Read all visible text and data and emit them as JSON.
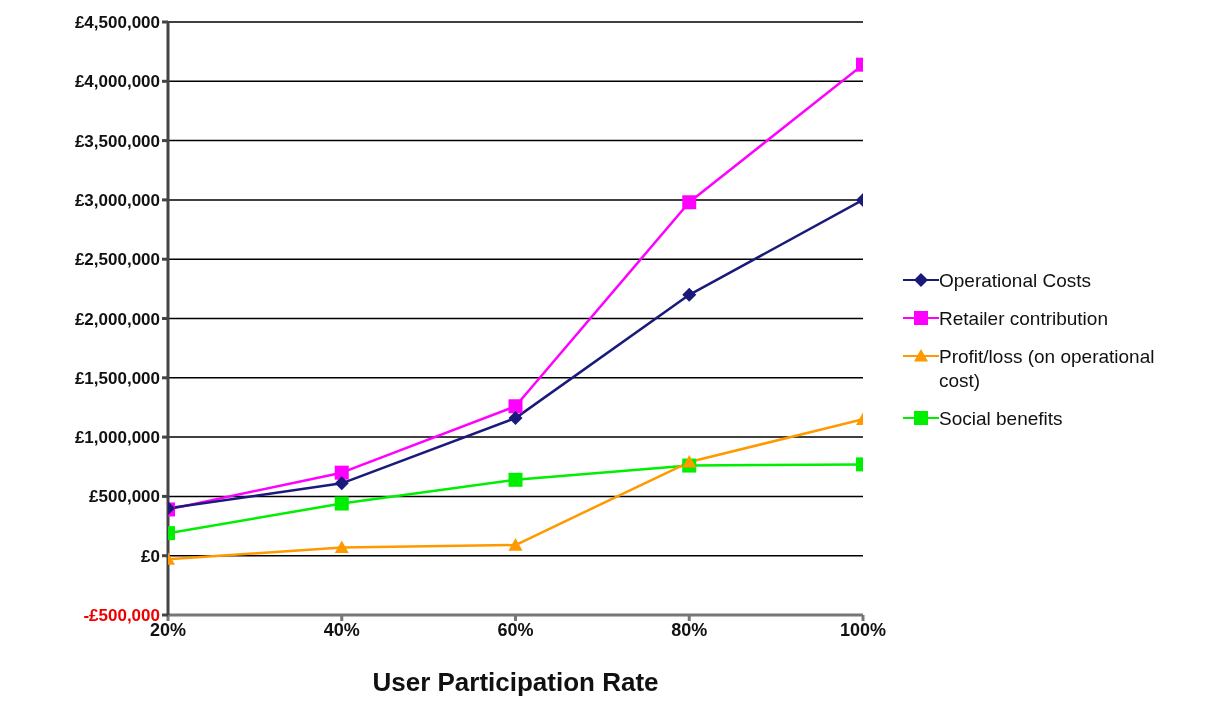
{
  "chart_data": {
    "type": "line",
    "xlabel": "User Participation Rate",
    "categories": [
      "20%",
      "40%",
      "60%",
      "80%",
      "100%"
    ],
    "series": [
      {
        "name": "Operational Costs",
        "color": "#1a1a7a",
        "marker": "diamond",
        "values": [
          400000,
          610000,
          1160000,
          2200000,
          3000000
        ]
      },
      {
        "name": "Retailer contribution",
        "color": "#ff00ff",
        "marker": "square",
        "values": [
          390000,
          700000,
          1260000,
          2980000,
          4140000
        ]
      },
      {
        "name": "Profit/loss (on operational cost)",
        "color": "#ff9900",
        "marker": "triangle",
        "values": [
          -30000,
          70000,
          90000,
          790000,
          1150000
        ]
      },
      {
        "name": "Social benefits",
        "color": "#00ee00",
        "marker": "square",
        "values": [
          190000,
          440000,
          640000,
          760000,
          770000
        ]
      }
    ],
    "ylim": [
      -500000,
      4500000
    ],
    "yticks": [
      {
        "value": -500000,
        "label": "-£500,000"
      },
      {
        "value": 0,
        "label": "£0"
      },
      {
        "value": 500000,
        "label": "£500,000"
      },
      {
        "value": 1000000,
        "label": "£1,000,000"
      },
      {
        "value": 1500000,
        "label": "£1,500,000"
      },
      {
        "value": 2000000,
        "label": "£2,000,000"
      },
      {
        "value": 2500000,
        "label": "£2,500,000"
      },
      {
        "value": 3000000,
        "label": "£3,000,000"
      },
      {
        "value": 3500000,
        "label": "£3,500,000"
      },
      {
        "value": 4000000,
        "label": "£4,000,000"
      },
      {
        "value": 4500000,
        "label": "£4,500,000"
      }
    ],
    "grid": "y",
    "legend": "right"
  }
}
